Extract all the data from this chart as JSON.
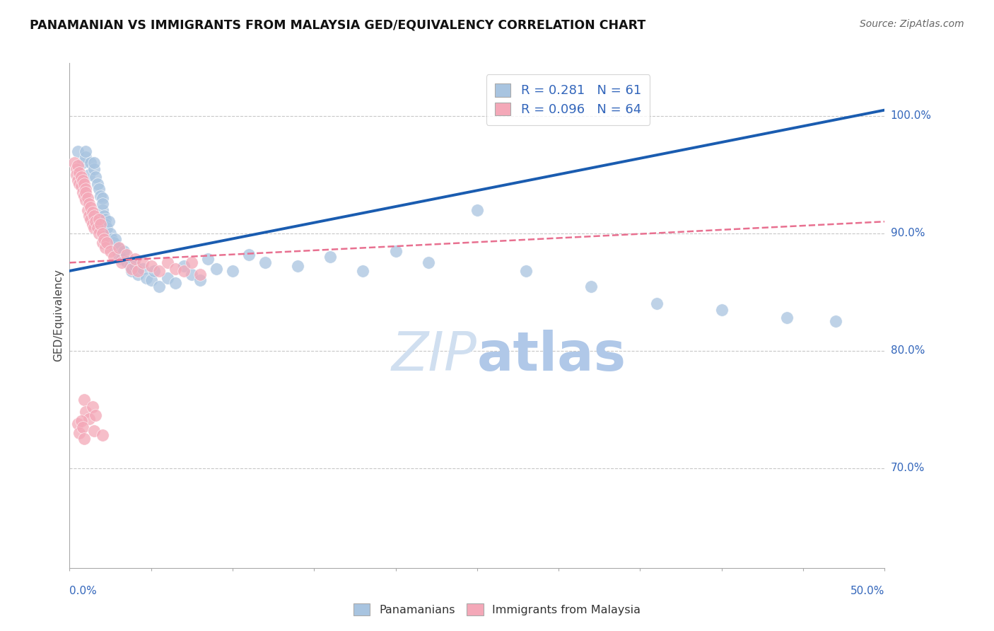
{
  "title": "PANAMANIAN VS IMMIGRANTS FROM MALAYSIA GED/EQUIVALENCY CORRELATION CHART",
  "source_text": "Source: ZipAtlas.com",
  "ylabel": "GED/Equivalency",
  "ylabel_right_ticks": [
    "100.0%",
    "90.0%",
    "80.0%",
    "70.0%"
  ],
  "ylabel_right_vals": [
    1.0,
    0.9,
    0.8,
    0.7
  ],
  "xmin": 0.0,
  "xmax": 0.5,
  "ymin": 0.615,
  "ymax": 1.045,
  "blue_R": 0.281,
  "blue_N": 61,
  "pink_R": 0.096,
  "pink_N": 64,
  "blue_color": "#A8C4E0",
  "pink_color": "#F4A8B8",
  "blue_line_color": "#1A5CB0",
  "pink_line_color": "#E87090",
  "grid_color": "#C8C8C8",
  "blue_line_x0": 0.0,
  "blue_line_y0": 0.868,
  "blue_line_x1": 0.5,
  "blue_line_y1": 1.005,
  "pink_line_x0": 0.0,
  "pink_line_y0": 0.875,
  "pink_line_x1": 0.5,
  "pink_line_y1": 0.91,
  "blue_points_x": [
    0.005,
    0.008,
    0.01,
    0.01,
    0.012,
    0.013,
    0.015,
    0.015,
    0.016,
    0.017,
    0.018,
    0.019,
    0.02,
    0.02,
    0.02,
    0.021,
    0.022,
    0.022,
    0.023,
    0.024,
    0.025,
    0.026,
    0.027,
    0.028,
    0.028,
    0.03,
    0.03,
    0.032,
    0.033,
    0.035,
    0.037,
    0.038,
    0.04,
    0.042,
    0.045,
    0.047,
    0.05,
    0.052,
    0.055,
    0.06,
    0.065,
    0.07,
    0.075,
    0.08,
    0.085,
    0.09,
    0.1,
    0.11,
    0.12,
    0.14,
    0.16,
    0.18,
    0.2,
    0.22,
    0.25,
    0.28,
    0.32,
    0.36,
    0.4,
    0.44,
    0.47
  ],
  "blue_points_y": [
    0.97,
    0.96,
    0.965,
    0.97,
    0.95,
    0.96,
    0.955,
    0.96,
    0.948,
    0.942,
    0.938,
    0.932,
    0.93,
    0.92,
    0.925,
    0.915,
    0.912,
    0.908,
    0.905,
    0.91,
    0.9,
    0.895,
    0.892,
    0.888,
    0.895,
    0.887,
    0.882,
    0.878,
    0.885,
    0.876,
    0.872,
    0.868,
    0.872,
    0.865,
    0.87,
    0.862,
    0.86,
    0.868,
    0.855,
    0.862,
    0.858,
    0.872,
    0.865,
    0.86,
    0.878,
    0.87,
    0.868,
    0.882,
    0.875,
    0.872,
    0.88,
    0.868,
    0.885,
    0.875,
    0.92,
    0.868,
    0.855,
    0.84,
    0.835,
    0.828,
    0.825
  ],
  "pink_points_x": [
    0.003,
    0.004,
    0.004,
    0.005,
    0.005,
    0.006,
    0.006,
    0.007,
    0.007,
    0.008,
    0.008,
    0.009,
    0.009,
    0.01,
    0.01,
    0.01,
    0.011,
    0.011,
    0.012,
    0.012,
    0.013,
    0.013,
    0.014,
    0.014,
    0.015,
    0.015,
    0.016,
    0.017,
    0.018,
    0.018,
    0.019,
    0.02,
    0.02,
    0.021,
    0.022,
    0.023,
    0.025,
    0.027,
    0.03,
    0.032,
    0.035,
    0.038,
    0.04,
    0.042,
    0.045,
    0.05,
    0.055,
    0.06,
    0.065,
    0.07,
    0.075,
    0.08,
    0.009,
    0.01,
    0.012,
    0.014,
    0.016,
    0.005,
    0.006,
    0.007,
    0.008,
    0.009,
    0.015,
    0.02
  ],
  "pink_points_y": [
    0.96,
    0.955,
    0.95,
    0.958,
    0.945,
    0.952,
    0.942,
    0.948,
    0.94,
    0.945,
    0.935,
    0.942,
    0.932,
    0.938,
    0.928,
    0.935,
    0.93,
    0.92,
    0.925,
    0.915,
    0.922,
    0.912,
    0.918,
    0.908,
    0.915,
    0.905,
    0.91,
    0.905,
    0.912,
    0.9,
    0.908,
    0.9,
    0.892,
    0.895,
    0.888,
    0.892,
    0.885,
    0.88,
    0.888,
    0.875,
    0.882,
    0.87,
    0.878,
    0.868,
    0.875,
    0.872,
    0.868,
    0.875,
    0.87,
    0.868,
    0.875,
    0.865,
    0.758,
    0.748,
    0.742,
    0.752,
    0.745,
    0.738,
    0.73,
    0.74,
    0.735,
    0.725,
    0.732,
    0.728
  ]
}
